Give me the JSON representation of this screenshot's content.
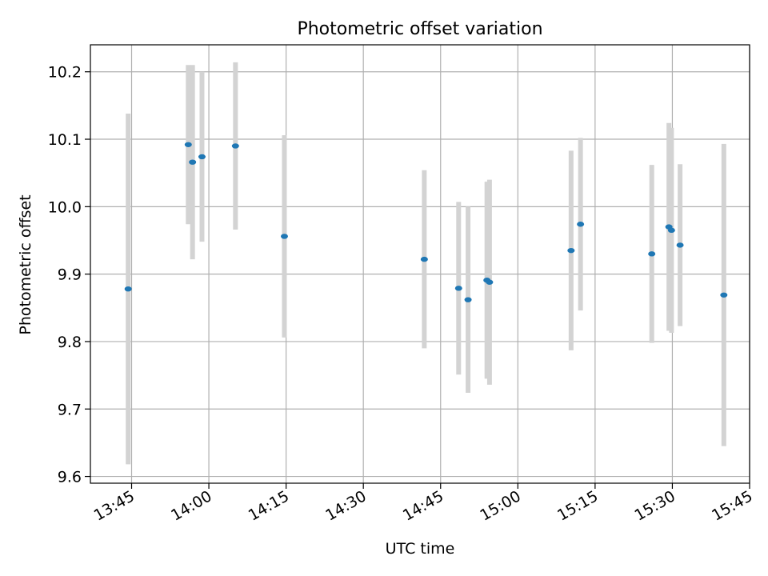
{
  "chart_data": {
    "type": "scatter",
    "title": "Photometric offset variation",
    "xlabel": "UTC time",
    "ylabel": "Photometric offset",
    "x_axis_type": "time",
    "xlim": [
      "13:37",
      "15:45"
    ],
    "ylim": [
      9.59,
      10.24
    ],
    "x_ticks": [
      "13:45",
      "14:00",
      "14:15",
      "14:30",
      "14:45",
      "15:00",
      "15:15",
      "15:30",
      "15:45"
    ],
    "y_ticks": [
      9.6,
      9.7,
      9.8,
      9.9,
      10.0,
      10.1,
      10.2
    ],
    "y_tick_labels": [
      "9.6",
      "9.7",
      "9.8",
      "9.9",
      "10.0",
      "10.1",
      "10.2"
    ],
    "grid": true,
    "point_color": "#1f77b4",
    "errorbar_color": "#d3d3d3",
    "series": [
      {
        "points": [
          {
            "t": "13:44:20",
            "y": 9.878,
            "err": 0.26
          },
          {
            "t": "13:56:00",
            "y": 10.092,
            "err": 0.118
          },
          {
            "t": "13:56:50",
            "y": 10.066,
            "err": 0.144
          },
          {
            "t": "13:58:40",
            "y": 10.074,
            "err": 0.126
          },
          {
            "t": "14:05:10",
            "y": 10.09,
            "err": 0.124
          },
          {
            "t": "14:14:40",
            "y": 9.956,
            "err": 0.15
          },
          {
            "t": "14:41:50",
            "y": 9.922,
            "err": 0.132
          },
          {
            "t": "14:48:30",
            "y": 9.879,
            "err": 0.128
          },
          {
            "t": "14:50:20",
            "y": 9.862,
            "err": 0.138
          },
          {
            "t": "14:54:00",
            "y": 9.891,
            "err": 0.146
          },
          {
            "t": "14:54:30",
            "y": 9.888,
            "err": 0.152
          },
          {
            "t": "15:10:20",
            "y": 9.935,
            "err": 0.148
          },
          {
            "t": "15:12:10",
            "y": 9.974,
            "err": 0.128
          },
          {
            "t": "15:26:00",
            "y": 9.93,
            "err": 0.132
          },
          {
            "t": "15:29:20",
            "y": 9.97,
            "err": 0.154
          },
          {
            "t": "15:29:50",
            "y": 9.965,
            "err": 0.152
          },
          {
            "t": "15:31:30",
            "y": 9.943,
            "err": 0.12
          },
          {
            "t": "15:40:00",
            "y": 9.869,
            "err": 0.224
          }
        ]
      }
    ]
  }
}
